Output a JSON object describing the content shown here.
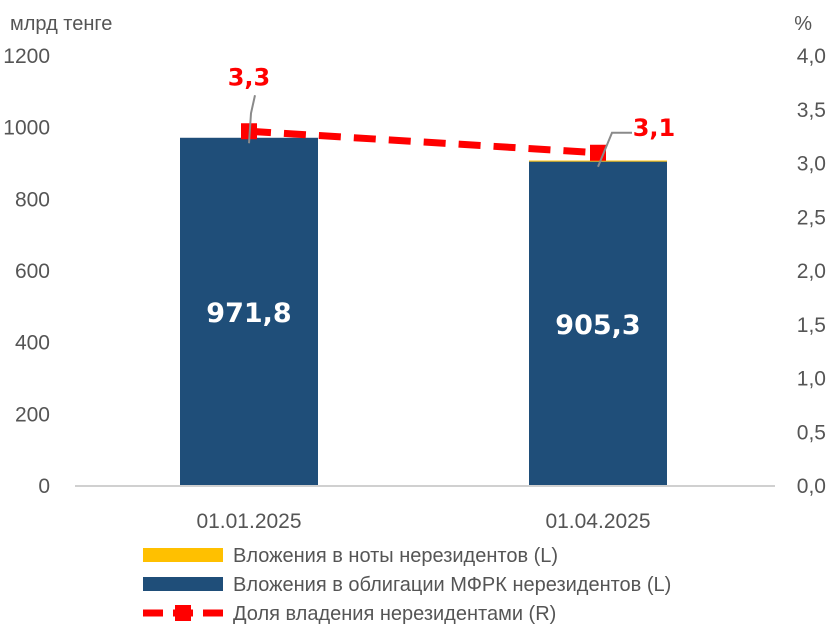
{
  "chart_data": {
    "type": "bar",
    "categories": [
      "01.01.2025",
      "01.04.2025"
    ],
    "left_axis": {
      "unit": "млрд тенге",
      "ylim": [
        0,
        1200
      ],
      "ticks": [
        "0",
        "200",
        "400",
        "600",
        "800",
        "1000",
        "1200"
      ]
    },
    "right_axis": {
      "unit": "%",
      "ylim": [
        0,
        4.0
      ],
      "ticks": [
        "0,0",
        "0,5",
        "1,0",
        "1,5",
        "2,0",
        "2,5",
        "3,0",
        "3,5",
        "4,0"
      ]
    },
    "series": [
      {
        "name": "Вложения в ноты нерезидентов (L)",
        "type": "bar",
        "axis": "left",
        "color": "#ffc000",
        "values": [
          0,
          3
        ]
      },
      {
        "name": "Вложения в облигации МФРК нерезидентов (L)",
        "type": "bar",
        "axis": "left",
        "color": "#1f4e79",
        "values": [
          971.8,
          905.3
        ],
        "labels": [
          "971,8",
          "905,3"
        ]
      },
      {
        "name": "Доля владения нерезидентами (R)",
        "type": "line",
        "axis": "right",
        "color": "#ff0000",
        "style": "dashed",
        "values": [
          3.3,
          3.1
        ],
        "labels": [
          "3,3",
          "3,1"
        ]
      }
    ],
    "stacked": true,
    "grid": false,
    "legend_position": "bottom"
  }
}
